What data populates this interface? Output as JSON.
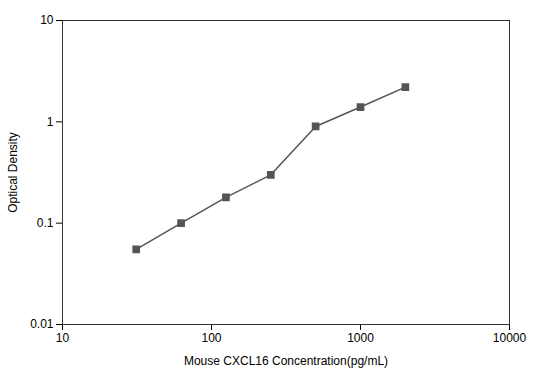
{
  "chart_data": {
    "type": "line",
    "x": [
      31.25,
      62.5,
      125,
      250,
      500,
      1000,
      2000
    ],
    "values": [
      0.055,
      0.1,
      0.18,
      0.3,
      0.9,
      1.4,
      2.2
    ],
    "xlabel": "Mouse CXCL16 Concentration(pg/mL)",
    "ylabel": "Optical Density",
    "xlim": [
      10,
      10000
    ],
    "ylim": [
      0.01,
      10
    ],
    "xticks": [
      10,
      100,
      1000,
      10000
    ],
    "yticks": [
      0.01,
      0.1,
      1,
      10
    ],
    "log": true,
    "grid": false,
    "color": "#555555",
    "marker": "square"
  }
}
